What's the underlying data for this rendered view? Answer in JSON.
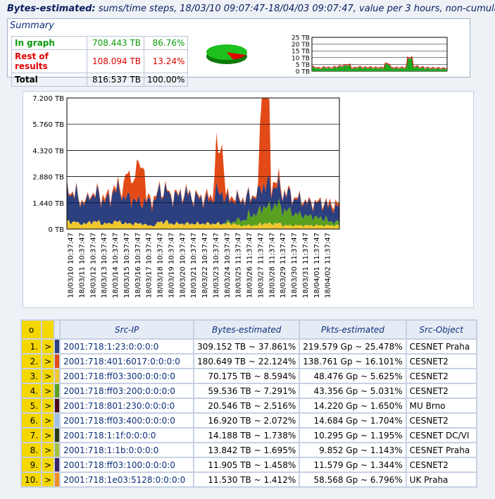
{
  "header": {
    "title": "Bytes-estimated:",
    "subtitle": "sums/time steps, 18/03/10 09:07:47-18/04/03 09:07:47, value per 3 hours, non-cumulative"
  },
  "summary": {
    "title": "Summary",
    "rows": [
      {
        "label": "In graph",
        "value": "708.443 TB",
        "pct": "86.76%"
      },
      {
        "label": "Rest of results",
        "value": "108.094 TB",
        "pct": "13.24%"
      },
      {
        "label": "Total",
        "value": "816.537 TB",
        "pct": "100.00%"
      }
    ],
    "mini_ticks": [
      "25 TB",
      "20 TB",
      "15 TB",
      "10 TB",
      "5 TB",
      "0 TB"
    ]
  },
  "colors": {
    "blue": "#2c3f7e",
    "red": "#e24a17",
    "green": "#5aa020",
    "yellow": "#f0c830",
    "darkred": "#4a0a1a",
    "lightblue": "#9fc0e6",
    "darkolive": "#2a3a14",
    "olive": "#a5c041",
    "purple": "#3a2468",
    "orange": "#f08c20"
  },
  "chart_data": {
    "type": "area",
    "y_ticks": [
      "7.200 TB",
      "5.760 TB",
      "4.320 TB",
      "2.880 TB",
      "1.440 TB",
      "0 TB"
    ],
    "ylim": [
      0,
      7.2
    ],
    "x_tick_labels": [
      "18/03/10 10:37:47",
      "18/03/11 10:37:47",
      "18/03/12 10:37:47",
      "18/03/13 10:37:47",
      "18/03/14 10:37:47",
      "18/03/15 10:37:47",
      "18/03/16 10:37:47",
      "18/03/17 10:37:47",
      "18/03/18 10:37:47",
      "18/03/19 10:37:47",
      "18/03/20 10:37:47",
      "18/03/21 10:37:47",
      "18/03/22 10:37:47",
      "18/03/23 10:37:47",
      "18/03/24 10:37:47",
      "18/03/25 11:37:47",
      "18/03/26 11:37:47",
      "18/03/27 11:37:47",
      "18/03/28 11:37:47",
      "18/03/29 11:37:47",
      "18/03/30 11:37:47",
      "18/03/31 11:37:47",
      "18/04/01 11:37:47",
      "18/04/02 11:37:47"
    ],
    "days": 24,
    "series": [
      {
        "color": "#2c3f7e",
        "values": [
          1.6,
          1.2,
          1.5,
          1.3,
          1.7,
          1.4,
          1.2,
          1.3,
          1.7,
          1.5,
          1.6,
          1.4,
          1.3,
          1.7,
          1.2,
          1.1,
          1.0,
          1.2,
          1.0,
          0.9,
          0.8,
          0.7,
          0.8,
          0.8
        ]
      },
      {
        "color": "#e24a17",
        "values": [
          0.1,
          0.1,
          0.1,
          0.2,
          0.2,
          1.2,
          2.0,
          0.2,
          0.1,
          0.1,
          0.1,
          0.1,
          0.2,
          2.3,
          0.2,
          0.1,
          0.1,
          5.6,
          0.3,
          0.1,
          0.1,
          0.1,
          0.1,
          0.2
        ]
      },
      {
        "color": "#5aa020",
        "values": [
          0,
          0,
          0,
          0,
          0,
          0,
          0,
          0,
          0,
          0,
          0,
          0,
          0,
          0,
          0.1,
          0.3,
          0.6,
          0.9,
          1.0,
          0.8,
          0.6,
          0.5,
          0.4,
          0.2
        ]
      },
      {
        "color": "#f0c830",
        "values": [
          0.4,
          0.3,
          0.4,
          0.3,
          0.4,
          0.3,
          0.3,
          0.2,
          0.4,
          0.3,
          0.3,
          0.3,
          0.3,
          0.3,
          0.3,
          0.2,
          0.2,
          0.3,
          0.3,
          0.2,
          0.2,
          0.2,
          0.2,
          0.2
        ]
      }
    ]
  },
  "table": {
    "headers": {
      "order": "o",
      "src_ip": "Src-IP",
      "bytes": "Bytes-estimated",
      "pkts": "Pkts-estimated",
      "obj": "Src-Object"
    },
    "rows": [
      {
        "idx": "1.",
        "arrow": ">",
        "color": "#2c3f7e",
        "ip": "2001:718:1:23:0:0:0:0",
        "bytes": "309.152 TB ~ 37.861%",
        "pkts": "219.579 Gp ~ 25.478%",
        "obj": "CESNET Praha"
      },
      {
        "idx": "2.",
        "arrow": ">",
        "color": "#e24a17",
        "ip": "2001:718:401:6017:0:0:0:0",
        "bytes": "180.649 TB ~ 22.124%",
        "pkts": "138.761 Gp ~ 16.101%",
        "obj": "CESNET2"
      },
      {
        "idx": "3.",
        "arrow": ">",
        "color": "#f0c830",
        "ip": "2001:718:ff03:300:0:0:0:0",
        "bytes": "70.175 TB ~  8.594%",
        "pkts": "48.476 Gp ~  5.625%",
        "obj": "CESNET2"
      },
      {
        "idx": "4.",
        "arrow": ">",
        "color": "#5aa020",
        "ip": "2001:718:ff03:200:0:0:0:0",
        "bytes": "59.536 TB ~  7.291%",
        "pkts": "43.356 Gp ~  5.031%",
        "obj": "CESNET2"
      },
      {
        "idx": "5.",
        "arrow": ">",
        "color": "#4a0a1a",
        "ip": "2001:718:801:230:0:0:0:0",
        "bytes": "20.546 TB ~  2.516%",
        "pkts": "14.220 Gp ~  1.650%",
        "obj": "MU Brno"
      },
      {
        "idx": "6.",
        "arrow": ">",
        "color": "#9fc0e6",
        "ip": "2001:718:ff03:400:0:0:0:0",
        "bytes": "16.920 TB ~  2.072%",
        "pkts": "14.684 Gp ~  1.704%",
        "obj": "CESNET2"
      },
      {
        "idx": "7.",
        "arrow": ">",
        "color": "#2a3a14",
        "ip": "2001:718:1:1f:0:0:0:0",
        "bytes": "14.188 TB ~  1.738%",
        "pkts": "10.295 Gp ~  1.195%",
        "obj": "CESNET DC/VI"
      },
      {
        "idx": "8.",
        "arrow": ">",
        "color": "#a5c041",
        "ip": "2001:718:1:1b:0:0:0:0",
        "bytes": "13.842 TB ~  1.695%",
        "pkts": "9.852 Gp ~  1.143%",
        "obj": "CESNET Praha"
      },
      {
        "idx": "9.",
        "arrow": ">",
        "color": "#3a2468",
        "ip": "2001:718:ff03:100:0:0:0:0",
        "bytes": "11.905 TB ~  1.458%",
        "pkts": "11.579 Gp ~  1.344%",
        "obj": "CESNET2"
      },
      {
        "idx": "10.",
        "arrow": ">",
        "color": "#f08c20",
        "ip": "2001:718:1e03:5128:0:0:0:0",
        "bytes": "11.530 TB ~  1.412%",
        "pkts": "58.568 Gp ~  6.796%",
        "obj": "UK Praha"
      }
    ]
  }
}
